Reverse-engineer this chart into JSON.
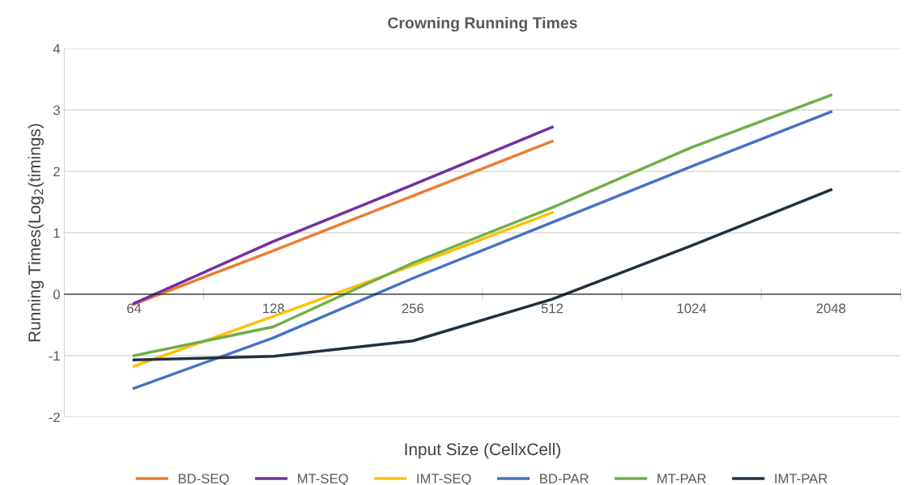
{
  "chart_data": {
    "type": "line",
    "title": "Crowning Running Times",
    "xlabel": "Input Size (CellxCell)",
    "ylabel": "Running Times(Log$_{2}$(timings)",
    "categories": [
      "64",
      "128",
      "256",
      "512",
      "1024",
      "2048"
    ],
    "series": [
      {
        "name": "BD-SEQ",
        "color": "#ed7d31",
        "values": [
          -0.16,
          0.71,
          1.6,
          2.49,
          null,
          null
        ]
      },
      {
        "name": "MT-SEQ",
        "color": "#7030a0",
        "values": [
          -0.15,
          0.86,
          1.78,
          2.72,
          null,
          null
        ]
      },
      {
        "name": "IMT-SEQ",
        "color": "#ffc000",
        "values": [
          -1.17,
          -0.36,
          0.47,
          1.33,
          null,
          null
        ]
      },
      {
        "name": "BD-PAR",
        "color": "#4472c4",
        "values": [
          -1.53,
          -0.71,
          0.26,
          1.17,
          2.08,
          2.97
        ]
      },
      {
        "name": "MT-PAR",
        "color": "#70ad47",
        "values": [
          -1.0,
          -0.53,
          0.51,
          1.41,
          2.39,
          3.24
        ]
      },
      {
        "name": "IMT-PAR",
        "color": "#203040",
        "values": [
          -1.07,
          -1.01,
          -0.76,
          -0.08,
          0.79,
          1.7
        ]
      }
    ],
    "ylim": [
      -2,
      4
    ],
    "yticks": [
      -2,
      -1,
      0,
      1,
      2,
      3,
      4
    ],
    "grid": "y",
    "legend": "bottom",
    "marker": "none",
    "line_style": "solid"
  }
}
